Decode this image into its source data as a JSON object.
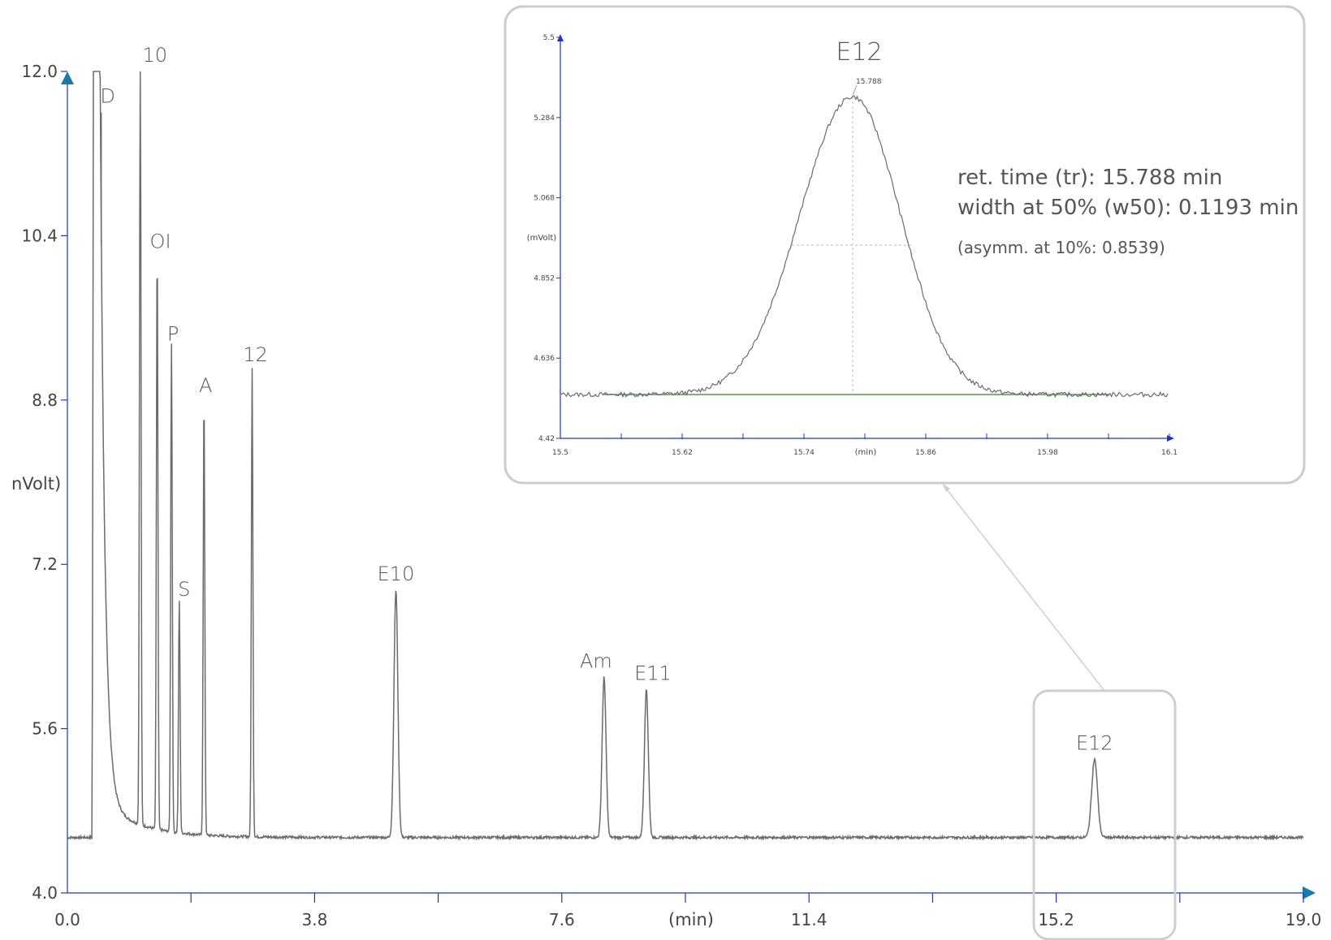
{
  "chart_data": [
    {
      "type": "line",
      "id": "main",
      "xlabel": "(min)",
      "ylabel": "nVolt)",
      "xlim": [
        0.0,
        19.0
      ],
      "ylim": [
        4.0,
        12.0
      ],
      "x_tick_labels": [
        "0.0",
        "3.8",
        "7.6",
        "11.4",
        "15.2",
        "19.0"
      ],
      "x_tick_values": [
        0.0,
        3.8,
        7.6,
        11.4,
        15.2,
        19.0
      ],
      "y_tick_labels": [
        "4.0",
        "5.6",
        "7.2",
        "8.8",
        "10.4",
        "12.0"
      ],
      "y_tick_values": [
        4.0,
        5.6,
        7.2,
        8.8,
        10.4,
        12.0
      ],
      "baseline": 4.54,
      "peaks": [
        {
          "label": "D",
          "x": 0.52,
          "y": 11.6
        },
        {
          "label": "10",
          "x": 1.12,
          "y": 12.0
        },
        {
          "label": "OI",
          "x": 1.38,
          "y": 10.2
        },
        {
          "label": "P",
          "x": 1.6,
          "y": 9.3
        },
        {
          "label": "S",
          "x": 1.72,
          "y": 6.8
        },
        {
          "label": "A",
          "x": 2.1,
          "y": 8.8
        },
        {
          "label": "12",
          "x": 2.84,
          "y": 9.1
        },
        {
          "label": "E10",
          "x": 5.05,
          "y": 6.95
        },
        {
          "label": "Am",
          "x": 8.25,
          "y": 6.1
        },
        {
          "label": "E11",
          "x": 8.9,
          "y": 5.98
        },
        {
          "label": "E12",
          "x": 15.79,
          "y": 5.3
        }
      ],
      "zoom_box_label": "E12"
    },
    {
      "type": "line",
      "id": "inset",
      "title": "E12",
      "xlabel": "(min)",
      "ylabel": "(mVolt)",
      "xlim": [
        15.5,
        16.1
      ],
      "ylim": [
        4.42,
        5.5
      ],
      "x_tick_labels": [
        "15.5",
        "15.62",
        "15.74",
        "15.86",
        "15.98",
        "16.1"
      ],
      "x_tick_values": [
        15.5,
        15.62,
        15.74,
        15.86,
        15.98,
        16.1
      ],
      "y_tick_labels": [
        "4.42",
        "4.636",
        "4.852",
        "5.068",
        "5.284",
        "5.5"
      ],
      "y_tick_values": [
        4.42,
        4.636,
        4.852,
        5.068,
        5.284,
        5.5
      ],
      "baseline": 4.538,
      "peak": {
        "x": 15.788,
        "y": 5.34,
        "label": "15.788"
      },
      "half_height_y": 4.94,
      "w50_start": 15.728,
      "w50_end": 15.847,
      "info": {
        "retention": "ret. time (tr): 15.788 min",
        "width": "width at 50% (w50): 0.1193 min",
        "asymmetry": "(asymm. at 10%: 0.8539)"
      }
    }
  ],
  "colors": {
    "axis": "#2233cc",
    "arrow": "#1a7aa8",
    "trace": "#6b6b6b",
    "baseline_fit": "#2e8b2e",
    "box": "#cccccc"
  }
}
